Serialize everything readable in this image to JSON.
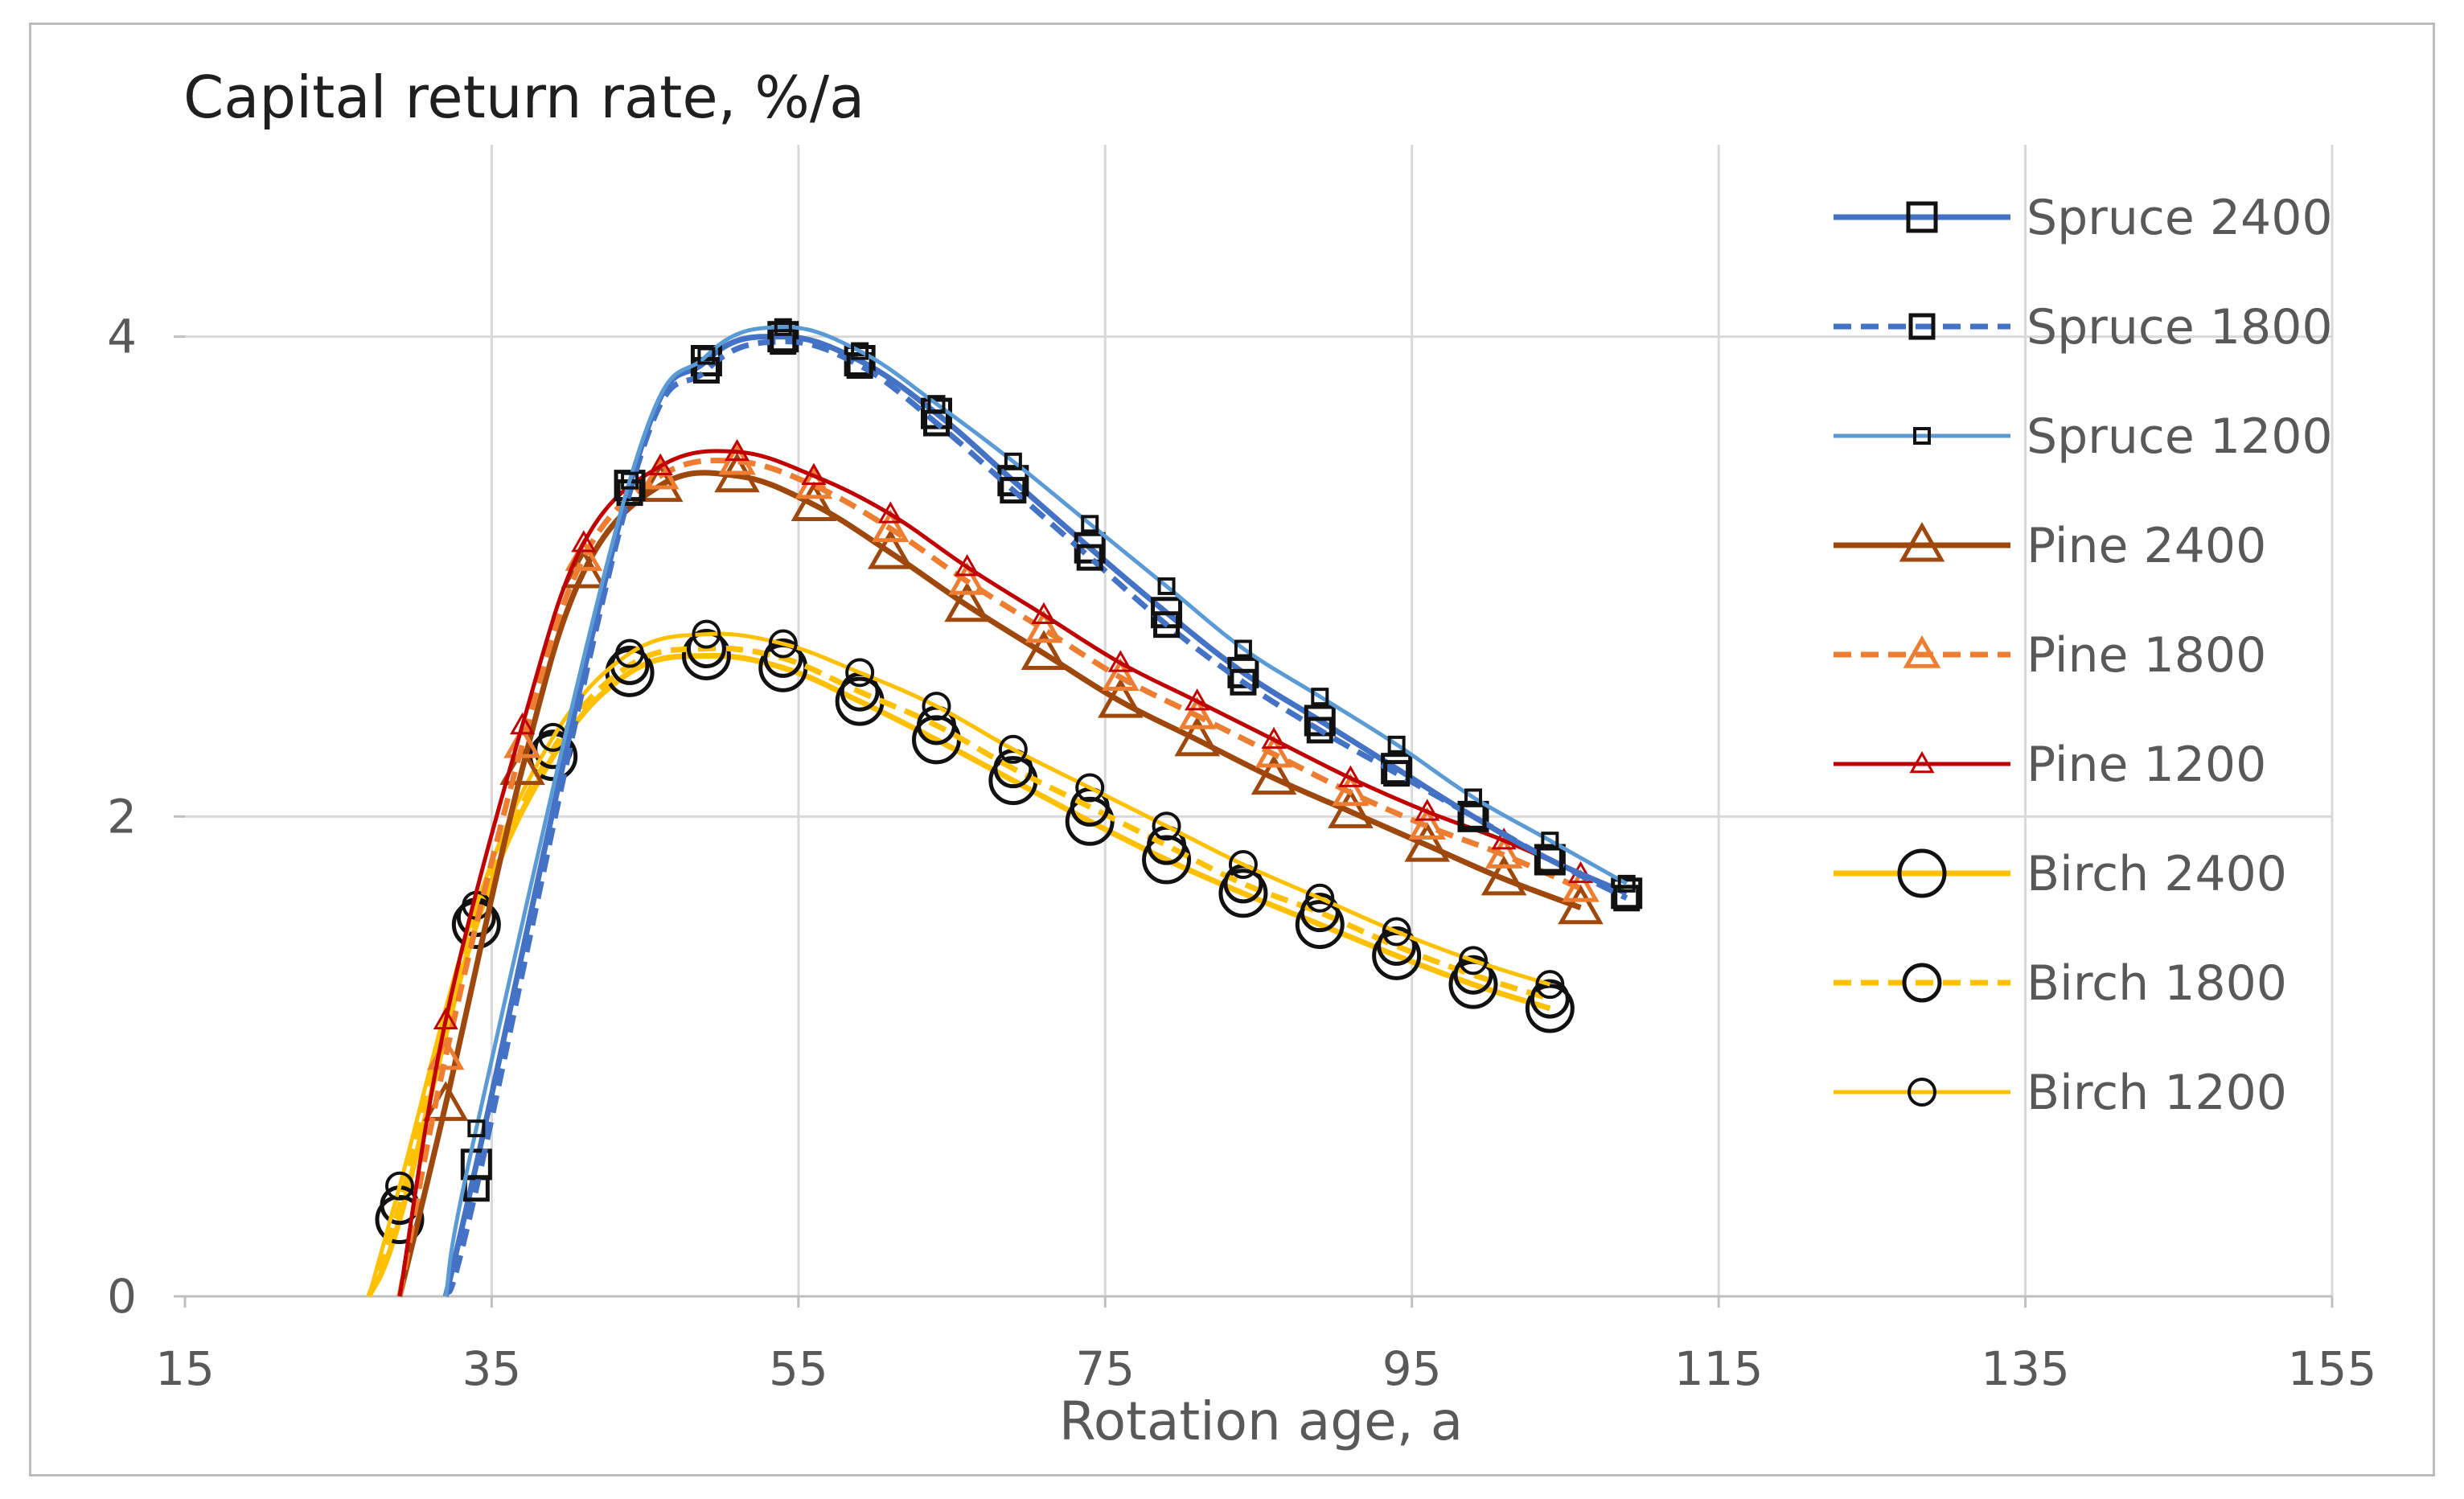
{
  "chart_data": {
    "type": "line",
    "title": "Capital return rate,  %/a",
    "xlabel": "Rotation age, a",
    "ylabel": "",
    "xlim": [
      15,
      155
    ],
    "ylim": [
      0,
      4.8
    ],
    "xticks": [
      15,
      35,
      55,
      75,
      95,
      115,
      135,
      155
    ],
    "yticks": [
      0,
      2,
      4
    ],
    "grid": true,
    "legend_position": "right",
    "series": [
      {
        "name": "Spruce 2400",
        "color": "#4472c4",
        "dash": "solid",
        "marker": "square",
        "marker_size": "large",
        "points": [
          [
            32,
            0.0
          ],
          [
            34,
            0.55
          ],
          [
            44,
            3.38
          ],
          [
            49,
            3.9
          ],
          [
            54,
            4.0
          ],
          [
            59,
            3.9
          ],
          [
            64,
            3.68
          ],
          [
            69,
            3.4
          ],
          [
            74,
            3.12
          ],
          [
            79,
            2.85
          ],
          [
            84,
            2.6
          ],
          [
            89,
            2.4
          ],
          [
            94,
            2.2
          ],
          [
            99,
            2.0
          ],
          [
            104,
            1.82
          ],
          [
            109,
            1.68
          ]
        ]
      },
      {
        "name": "Spruce 1800",
        "color": "#4472c4",
        "dash": "dashed",
        "marker": "square",
        "marker_size": "medium",
        "points": [
          [
            32,
            0.0
          ],
          [
            34,
            0.45
          ],
          [
            44,
            3.35
          ],
          [
            49,
            3.86
          ],
          [
            54,
            3.98
          ],
          [
            59,
            3.88
          ],
          [
            64,
            3.64
          ],
          [
            69,
            3.36
          ],
          [
            74,
            3.08
          ],
          [
            79,
            2.8
          ],
          [
            84,
            2.56
          ],
          [
            89,
            2.36
          ],
          [
            94,
            2.18
          ],
          [
            99,
            2.0
          ],
          [
            104,
            1.82
          ],
          [
            109,
            1.66
          ]
        ]
      },
      {
        "name": "Spruce 1200",
        "color": "#5b9bd5",
        "dash": "solid",
        "marker": "square",
        "marker_size": "small",
        "points": [
          [
            32,
            0.0
          ],
          [
            34,
            0.7
          ],
          [
            44,
            3.4
          ],
          [
            49,
            3.92
          ],
          [
            54,
            4.04
          ],
          [
            59,
            3.94
          ],
          [
            64,
            3.72
          ],
          [
            69,
            3.48
          ],
          [
            74,
            3.22
          ],
          [
            79,
            2.96
          ],
          [
            84,
            2.7
          ],
          [
            89,
            2.5
          ],
          [
            94,
            2.3
          ],
          [
            99,
            2.08
          ],
          [
            104,
            1.9
          ],
          [
            109,
            1.72
          ]
        ]
      },
      {
        "name": "Pine 2400",
        "color": "#9e480e",
        "dash": "solid",
        "marker": "triangle",
        "marker_size": "large",
        "points": [
          [
            29,
            0.0
          ],
          [
            32,
            0.8
          ],
          [
            37,
            2.2
          ],
          [
            41,
            3.02
          ],
          [
            46,
            3.38
          ],
          [
            51,
            3.42
          ],
          [
            56,
            3.3
          ],
          [
            61,
            3.1
          ],
          [
            66,
            2.88
          ],
          [
            71,
            2.68
          ],
          [
            76,
            2.48
          ],
          [
            81,
            2.32
          ],
          [
            86,
            2.16
          ],
          [
            91,
            2.02
          ],
          [
            96,
            1.88
          ],
          [
            101,
            1.74
          ],
          [
            106,
            1.62
          ]
        ]
      },
      {
        "name": "Pine 1800",
        "color": "#ed7d31",
        "dash": "dashed",
        "marker": "triangle",
        "marker_size": "medium",
        "points": [
          [
            29,
            0.0
          ],
          [
            32,
            1.0
          ],
          [
            37,
            2.3
          ],
          [
            41,
            3.08
          ],
          [
            46,
            3.42
          ],
          [
            51,
            3.48
          ],
          [
            56,
            3.38
          ],
          [
            61,
            3.2
          ],
          [
            66,
            2.98
          ],
          [
            71,
            2.78
          ],
          [
            76,
            2.58
          ],
          [
            81,
            2.42
          ],
          [
            86,
            2.26
          ],
          [
            91,
            2.1
          ],
          [
            96,
            1.96
          ],
          [
            101,
            1.84
          ],
          [
            106,
            1.7
          ]
        ]
      },
      {
        "name": "Pine 1200",
        "color": "#c00000",
        "dash": "solid",
        "marker": "triangle",
        "marker_size": "small",
        "points": [
          [
            29,
            0.0
          ],
          [
            32,
            1.15
          ],
          [
            37,
            2.38
          ],
          [
            41,
            3.14
          ],
          [
            46,
            3.46
          ],
          [
            51,
            3.52
          ],
          [
            56,
            3.42
          ],
          [
            61,
            3.26
          ],
          [
            66,
            3.04
          ],
          [
            71,
            2.84
          ],
          [
            76,
            2.64
          ],
          [
            81,
            2.48
          ],
          [
            86,
            2.32
          ],
          [
            91,
            2.16
          ],
          [
            96,
            2.02
          ],
          [
            101,
            1.9
          ],
          [
            106,
            1.76
          ]
        ]
      },
      {
        "name": "Birch 2400",
        "color": "#ffc000",
        "dash": "solid",
        "marker": "circle",
        "marker_size": "large",
        "points": [
          [
            27,
            0.0
          ],
          [
            29,
            0.32
          ],
          [
            34,
            1.55
          ],
          [
            39,
            2.25
          ],
          [
            44,
            2.6
          ],
          [
            49,
            2.67
          ],
          [
            54,
            2.62
          ],
          [
            59,
            2.48
          ],
          [
            64,
            2.32
          ],
          [
            69,
            2.15
          ],
          [
            74,
            1.98
          ],
          [
            79,
            1.82
          ],
          [
            84,
            1.68
          ],
          [
            89,
            1.55
          ],
          [
            94,
            1.42
          ],
          [
            99,
            1.3
          ],
          [
            104,
            1.2
          ]
        ]
      },
      {
        "name": "Birch 1800",
        "color": "#ffc000",
        "dash": "dashed",
        "marker": "circle",
        "marker_size": "medium",
        "points": [
          [
            27,
            0.0
          ],
          [
            29,
            0.38
          ],
          [
            34,
            1.58
          ],
          [
            39,
            2.28
          ],
          [
            44,
            2.63
          ],
          [
            49,
            2.7
          ],
          [
            54,
            2.66
          ],
          [
            59,
            2.52
          ],
          [
            64,
            2.38
          ],
          [
            69,
            2.2
          ],
          [
            74,
            2.04
          ],
          [
            79,
            1.88
          ],
          [
            84,
            1.72
          ],
          [
            89,
            1.6
          ],
          [
            94,
            1.46
          ],
          [
            99,
            1.34
          ],
          [
            104,
            1.24
          ]
        ]
      },
      {
        "name": "Birch 1200",
        "color": "#ffc000",
        "dash": "solid",
        "marker": "circle",
        "marker_size": "small",
        "points": [
          [
            27,
            0.0
          ],
          [
            29,
            0.46
          ],
          [
            34,
            1.63
          ],
          [
            39,
            2.33
          ],
          [
            44,
            2.68
          ],
          [
            49,
            2.76
          ],
          [
            54,
            2.72
          ],
          [
            59,
            2.6
          ],
          [
            64,
            2.46
          ],
          [
            69,
            2.28
          ],
          [
            74,
            2.12
          ],
          [
            79,
            1.96
          ],
          [
            84,
            1.8
          ],
          [
            89,
            1.66
          ],
          [
            94,
            1.52
          ],
          [
            99,
            1.4
          ],
          [
            104,
            1.3
          ]
        ]
      }
    ]
  }
}
